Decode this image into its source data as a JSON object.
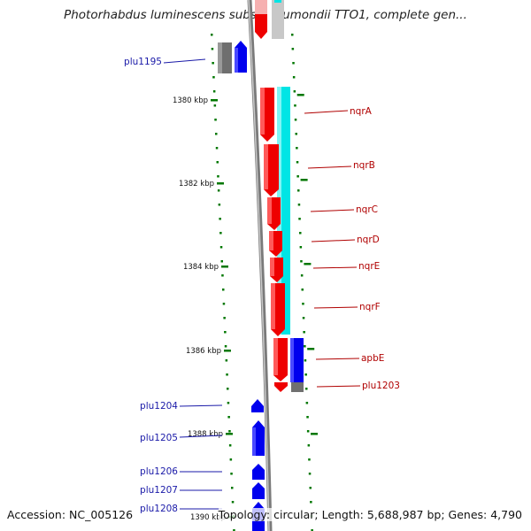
{
  "title": "Photorhabdus luminescens subsp. laumondii TTO1, complete gen...",
  "footer": {
    "accession": "Accession: NC_005126",
    "summary": "Topology: circular; Length: 5,688,987 bp; Genes: 4,790"
  },
  "colors": {
    "forward_gene": "#ee0000",
    "reverse_gene": "#0000ee",
    "highlight": "#00e5e5",
    "backbone": "#808080",
    "other_gene": "#707070",
    "tick": "#007700",
    "label_left": "#1a1aa8",
    "label_right": "#b00000"
  },
  "scale": {
    "ticks": [
      {
        "label": "1380 kbp"
      },
      {
        "label": "1382 kbp"
      },
      {
        "label": "1384 kbp"
      },
      {
        "label": "1386 kbp"
      },
      {
        "label": "1388 kbp"
      },
      {
        "label": "1390 kbp"
      }
    ]
  },
  "genes_left": [
    {
      "name": "plu1195"
    },
    {
      "name": "plu1204"
    },
    {
      "name": "plu1205"
    },
    {
      "name": "plu1206"
    },
    {
      "name": "plu1207"
    },
    {
      "name": "plu1208"
    }
  ],
  "genes_right": [
    {
      "name": "nqrA"
    },
    {
      "name": "nqrB"
    },
    {
      "name": "nqrC"
    },
    {
      "name": "nqrD"
    },
    {
      "name": "nqrE"
    },
    {
      "name": "nqrF"
    },
    {
      "name": "apbE"
    },
    {
      "name": "plu1203"
    }
  ]
}
